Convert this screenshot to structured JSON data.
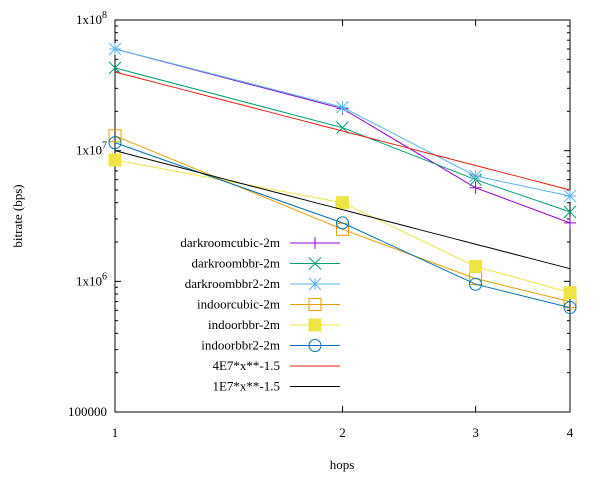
{
  "chart_data": {
    "type": "line",
    "title": "",
    "xlabel": "hops",
    "ylabel": "bitrate (bps)",
    "x_scale": "log",
    "y_scale": "log",
    "xlim": [
      1,
      4
    ],
    "ylim": [
      100000,
      100000000
    ],
    "x_ticks": [
      1,
      2,
      3,
      4
    ],
    "x_tick_labels": [
      "1",
      "2",
      "3",
      "4"
    ],
    "y_ticks": [
      100000,
      1000000,
      10000000,
      100000000
    ],
    "y_tick_labels": [
      "100000",
      "1x10^6",
      "1x10^7",
      "1x10^8"
    ],
    "legend_position": "center-left",
    "grid": false,
    "series": [
      {
        "name": "darkroomcubic-2m",
        "color": "#9400d3",
        "marker": "plus",
        "x": [
          1,
          2,
          3,
          4
        ],
        "y": [
          60000000,
          21000000,
          5200000,
          2800000
        ]
      },
      {
        "name": "darkroombbr-2m",
        "color": "#009e73",
        "marker": "cross",
        "x": [
          1,
          2,
          3,
          4
        ],
        "y": [
          43000000,
          15000000,
          6000000,
          3400000
        ]
      },
      {
        "name": "darkroombbr2-2m",
        "color": "#56b4e9",
        "marker": "star",
        "x": [
          1,
          2,
          3,
          4
        ],
        "y": [
          60000000,
          21500000,
          6400000,
          4500000
        ]
      },
      {
        "name": "indoorcubic-2m",
        "color": "#e69f00",
        "marker": "square-open",
        "x": [
          1,
          2,
          3,
          4
        ],
        "y": [
          13000000,
          2500000,
          1050000,
          700000
        ]
      },
      {
        "name": "indoorbbr-2m",
        "color": "#f0e442",
        "marker": "square-filled",
        "x": [
          1,
          2,
          3,
          4
        ],
        "y": [
          8500000,
          4000000,
          1300000,
          820000
        ]
      },
      {
        "name": "indoorbbr2-2m",
        "color": "#0072b2",
        "marker": "circle-open",
        "x": [
          1,
          2,
          3,
          4
        ],
        "y": [
          11500000,
          2800000,
          950000,
          630000
        ]
      },
      {
        "name": "4E7*x**-1.5",
        "color": "#e51e10",
        "marker": "none",
        "function": {
          "a": 40000000,
          "b": -1.5
        }
      },
      {
        "name": "1E7*x**-1.5",
        "color": "#000000",
        "marker": "none",
        "function": {
          "a": 10000000,
          "b": -1.5
        }
      }
    ]
  }
}
